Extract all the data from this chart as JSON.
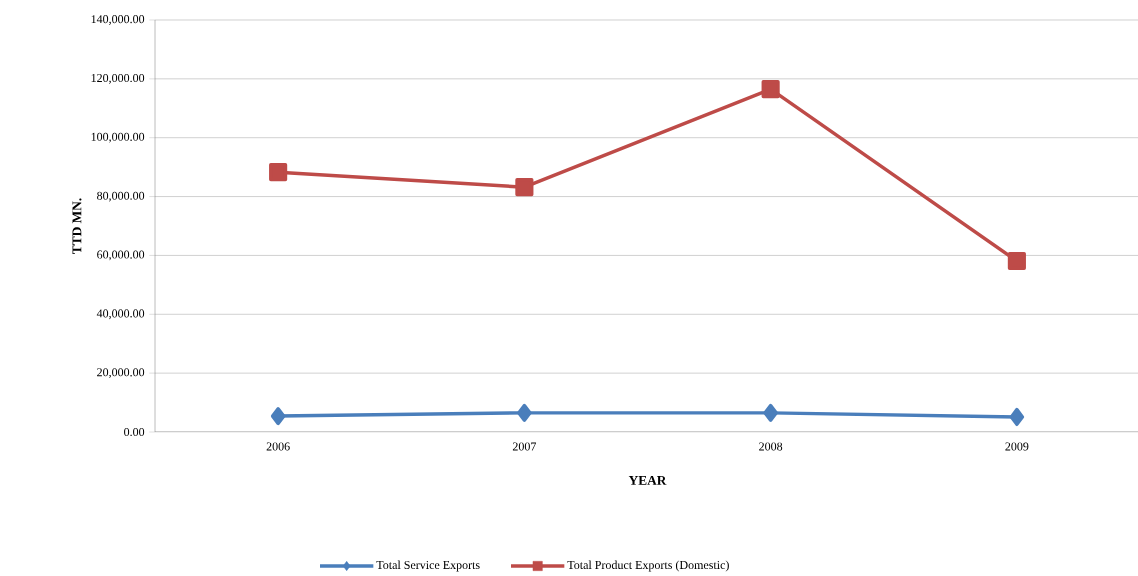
{
  "chart_data": {
    "type": "line",
    "xlabel": "YEAR",
    "ylabel": "TTD MN.",
    "categories": [
      "2006",
      "2007",
      "2008",
      "2009"
    ],
    "series": [
      {
        "name": "Total Service Exports",
        "color": "#4a7ebb",
        "marker": "diamond",
        "values": [
          5400,
          6500,
          6500,
          5100
        ]
      },
      {
        "name": "Total Product Exports (Domestic)",
        "color": "#be4b48",
        "marker": "square",
        "values": [
          88300,
          83200,
          116500,
          58100
        ]
      }
    ],
    "ylim": [
      0,
      140000
    ],
    "yticks": [
      {
        "value": 0,
        "label": "0.00"
      },
      {
        "value": 20000,
        "label": "20,000.00"
      },
      {
        "value": 40000,
        "label": "40,000.00"
      },
      {
        "value": 60000,
        "label": "60,000.00"
      },
      {
        "value": 80000,
        "label": "80,000.00"
      },
      {
        "value": 100000,
        "label": "100,000.00"
      },
      {
        "value": 120000,
        "label": "120,000.00"
      },
      {
        "value": 140000,
        "label": "140,000.00"
      }
    ],
    "grid": "y",
    "legend": "bottom",
    "line_style": "solid"
  }
}
